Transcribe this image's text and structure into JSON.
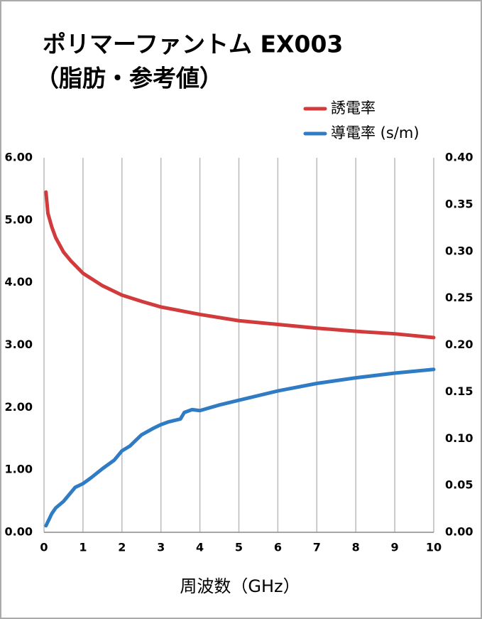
{
  "chart_data": {
    "type": "line",
    "title": "ポリマーファントム EX003",
    "subtitle": "（脂肪・参考値）",
    "xlabel": "周波数（GHz）",
    "xlim": [
      0,
      10
    ],
    "xticks": [
      0,
      1,
      2,
      3,
      4,
      5,
      6,
      7,
      8,
      9,
      10
    ],
    "ylim": [
      0,
      6
    ],
    "yticks": [
      {
        "value": 0,
        "label": "0.00"
      },
      {
        "value": 1,
        "label": "1.00"
      },
      {
        "value": 2,
        "label": "2.00"
      },
      {
        "value": 3,
        "label": "3.00"
      },
      {
        "value": 4,
        "label": "4.00"
      },
      {
        "value": 5,
        "label": "5.00"
      },
      {
        "value": 6,
        "label": "6.00"
      }
    ],
    "y2lim": [
      0,
      0.4
    ],
    "y2ticks": [
      {
        "value": 0,
        "label": "0.00"
      },
      {
        "value": 0.05,
        "label": "0.05"
      },
      {
        "value": 0.1,
        "label": "0.10"
      },
      {
        "value": 0.15,
        "label": "0.15"
      },
      {
        "value": 0.2,
        "label": "0.20"
      },
      {
        "value": 0.25,
        "label": "0.25"
      },
      {
        "value": 0.3,
        "label": "0.30"
      },
      {
        "value": 0.35,
        "label": "0.35"
      },
      {
        "value": 0.4,
        "label": "0.40"
      }
    ],
    "xgrid": true,
    "legend": "top-right",
    "series": [
      {
        "name": "誘電率",
        "color": "#d13b3b",
        "x": [
          0.05,
          0.1,
          0.2,
          0.3,
          0.5,
          0.7,
          1,
          1.5,
          2,
          2.5,
          3,
          4,
          5,
          6,
          7,
          8,
          9,
          10
        ],
        "values": [
          5.45,
          5.11,
          4.89,
          4.72,
          4.49,
          4.34,
          4.15,
          3.95,
          3.8,
          3.7,
          3.61,
          3.49,
          3.39,
          3.33,
          3.27,
          3.22,
          3.18,
          3.12
        ]
      },
      {
        "name": "導電率 (s/m)",
        "color": "#2f7cc4",
        "axis": "y2",
        "x": [
          0.05,
          0.2,
          0.3,
          0.5,
          0.8,
          1,
          1.2,
          1.5,
          1.8,
          2,
          2.2,
          2.5,
          2.8,
          3,
          3.2,
          3.5,
          3.6,
          3.8,
          4,
          4.5,
          5,
          6,
          7,
          8,
          9,
          10
        ],
        "values": [
          0.007,
          0.02,
          0.026,
          0.033,
          0.048,
          0.052,
          0.058,
          0.068,
          0.077,
          0.087,
          0.092,
          0.104,
          0.111,
          0.115,
          0.118,
          0.121,
          0.128,
          0.131,
          0.13,
          0.136,
          0.141,
          0.151,
          0.159,
          0.165,
          0.17,
          0.174
        ]
      }
    ]
  }
}
